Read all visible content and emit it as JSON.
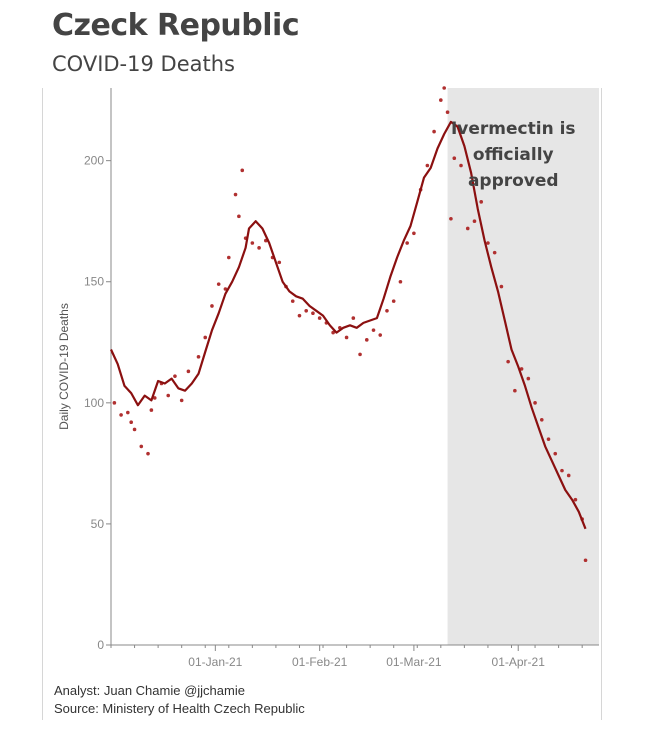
{
  "header": {
    "title": "Czeck Republic",
    "subtitle": "COVID-19 Deaths"
  },
  "footer": {
    "analyst": "Analyst: Juan Chamie @jjchamie",
    "source": "Source: Ministery of Health Czech Republic"
  },
  "colors": {
    "line": "#8b1010",
    "dots": "#b03030",
    "shade": "#e6e6e6",
    "axis": "#888888"
  },
  "chart_data": {
    "type": "line",
    "title": "",
    "xlabel": "",
    "ylabel": "Daily COVID-19 Deaths",
    "ylim": [
      0,
      230
    ],
    "xlim": [
      "2020-12-01",
      "2021-04-25"
    ],
    "yticks": [
      0,
      50,
      100,
      150,
      200
    ],
    "xticks": [
      "01-Jan-21",
      "01-Feb-21",
      "01-Mar-21",
      "01-Apr-21"
    ],
    "xtick_dates": [
      "2021-01-01",
      "2021-02-01",
      "2021-03-01",
      "2021-04-01"
    ],
    "grid": false,
    "annotation": {
      "text_lines": [
        "Ivermectin is",
        "officially",
        "approved"
      ],
      "shaded_from": "2021-03-11",
      "shaded_to": "2021-04-25"
    },
    "series": [
      {
        "kind": "line",
        "x": [
          "2020-12-01",
          "2020-12-03",
          "2020-12-05",
          "2020-12-07",
          "2020-12-09",
          "2020-12-11",
          "2020-12-13",
          "2020-12-15",
          "2020-12-17",
          "2020-12-19",
          "2020-12-21",
          "2020-12-23",
          "2020-12-25",
          "2020-12-27",
          "2020-12-29",
          "2020-12-31",
          "2021-01-02",
          "2021-01-04",
          "2021-01-06",
          "2021-01-08",
          "2021-01-10",
          "2021-01-11",
          "2021-01-13",
          "2021-01-15",
          "2021-01-17",
          "2021-01-19",
          "2021-01-21",
          "2021-01-23",
          "2021-01-25",
          "2021-01-27",
          "2021-01-29",
          "2021-01-31",
          "2021-02-02",
          "2021-02-04",
          "2021-02-06",
          "2021-02-08",
          "2021-02-10",
          "2021-02-12",
          "2021-02-14",
          "2021-02-16",
          "2021-02-18",
          "2021-02-20",
          "2021-02-22",
          "2021-02-24",
          "2021-02-26",
          "2021-02-28",
          "2021-03-02",
          "2021-03-04",
          "2021-03-06",
          "2021-03-08",
          "2021-03-10",
          "2021-03-12",
          "2021-03-14",
          "2021-03-16",
          "2021-03-18",
          "2021-03-20",
          "2021-03-22",
          "2021-03-24",
          "2021-03-26",
          "2021-03-28",
          "2021-03-30",
          "2021-04-01",
          "2021-04-03",
          "2021-04-05",
          "2021-04-07",
          "2021-04-09",
          "2021-04-11",
          "2021-04-13",
          "2021-04-15",
          "2021-04-17",
          "2021-04-19",
          "2021-04-21"
        ],
        "y": [
          122,
          116,
          107,
          104,
          99,
          103,
          101,
          109,
          108,
          110,
          106,
          105,
          108,
          112,
          121,
          130,
          137,
          145,
          150,
          156,
          164,
          172,
          175,
          172,
          166,
          158,
          150,
          146,
          144,
          143,
          140,
          138,
          136,
          132,
          129,
          131,
          132,
          131,
          133,
          134,
          135,
          143,
          152,
          160,
          167,
          173,
          183,
          193,
          197,
          205,
          211,
          216,
          214,
          206,
          195,
          180,
          167,
          156,
          146,
          134,
          122,
          115,
          107,
          98,
          90,
          82,
          76,
          70,
          64,
          60,
          55,
          48
        ]
      },
      {
        "kind": "scatter",
        "x": [
          "2020-12-02",
          "2020-12-04",
          "2020-12-06",
          "2020-12-07",
          "2020-12-08",
          "2020-12-10",
          "2020-12-12",
          "2020-12-13",
          "2020-12-14",
          "2020-12-16",
          "2020-12-18",
          "2020-12-20",
          "2020-12-22",
          "2020-12-24",
          "2020-12-27",
          "2020-12-29",
          "2020-12-31",
          "2021-01-02",
          "2021-01-04",
          "2021-01-05",
          "2021-01-07",
          "2021-01-08",
          "2021-01-09",
          "2021-01-10",
          "2021-01-12",
          "2021-01-14",
          "2021-01-16",
          "2021-01-18",
          "2021-01-20",
          "2021-01-22",
          "2021-01-24",
          "2021-01-26",
          "2021-01-28",
          "2021-01-30",
          "2021-02-01",
          "2021-02-03",
          "2021-02-05",
          "2021-02-07",
          "2021-02-09",
          "2021-02-11",
          "2021-02-13",
          "2021-02-15",
          "2021-02-17",
          "2021-02-19",
          "2021-02-21",
          "2021-02-23",
          "2021-02-25",
          "2021-02-27",
          "2021-03-01",
          "2021-03-03",
          "2021-03-05",
          "2021-03-07",
          "2021-03-09",
          "2021-03-10",
          "2021-03-11",
          "2021-03-12",
          "2021-03-13",
          "2021-03-15",
          "2021-03-17",
          "2021-03-19",
          "2021-03-21",
          "2021-03-23",
          "2021-03-25",
          "2021-03-27",
          "2021-03-29",
          "2021-03-31",
          "2021-04-02",
          "2021-04-04",
          "2021-04-06",
          "2021-04-08",
          "2021-04-10",
          "2021-04-12",
          "2021-04-14",
          "2021-04-16",
          "2021-04-18",
          "2021-04-20",
          "2021-04-21"
        ],
        "y": [
          100,
          95,
          96,
          92,
          89,
          82,
          79,
          97,
          102,
          108,
          103,
          111,
          101,
          113,
          119,
          127,
          140,
          149,
          147,
          160,
          186,
          177,
          196,
          168,
          166,
          164,
          167,
          160,
          158,
          148,
          142,
          136,
          138,
          137,
          135,
          133,
          129,
          131,
          127,
          135,
          120,
          126,
          130,
          128,
          138,
          142,
          150,
          166,
          170,
          188,
          198,
          212,
          225,
          230,
          220,
          176,
          201,
          198,
          172,
          175,
          183,
          166,
          162,
          148,
          117,
          105,
          114,
          110,
          100,
          93,
          85,
          79,
          72,
          70,
          60,
          52,
          35
        ]
      }
    ]
  }
}
